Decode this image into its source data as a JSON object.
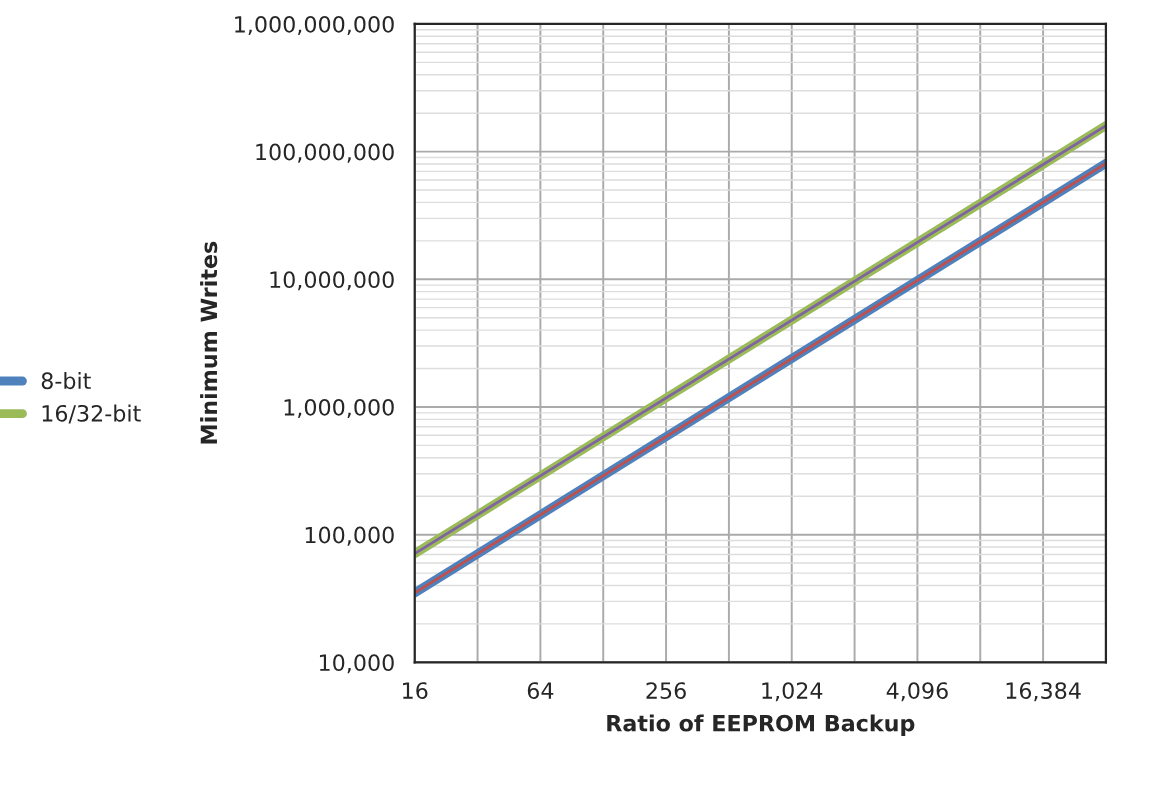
{
  "chart_data": {
    "type": "line",
    "xlabel": "Ratio of EEPROM Backup",
    "ylabel": "Minimum Writes",
    "x": [
      16,
      32768
    ],
    "log": "xy",
    "grid": true,
    "legend": "left",
    "marker": "none",
    "line_style": "solid",
    "xlim": [
      16,
      32768
    ],
    "xticks": [
      16,
      {
        "value": 32,
        "label": null
      },
      64,
      {
        "value": 128,
        "label": null
      },
      256,
      {
        "value": 512,
        "label": null
      },
      {
        "value": 1024,
        "label": "1,024"
      },
      {
        "value": 2048,
        "label": null
      },
      {
        "value": 4096,
        "label": "4,096"
      },
      {
        "value": 8192,
        "label": null
      },
      {
        "value": 16384,
        "label": "16,384"
      },
      {
        "value": 32768,
        "label": null
      }
    ],
    "ylim": [
      10000,
      1000000000
    ],
    "yticks": [
      {
        "value": 10000,
        "label": "10,000"
      },
      {
        "value": 100000,
        "label": "100,000"
      },
      {
        "value": 1000000,
        "label": "1,000,000"
      },
      {
        "value": 10000000,
        "label": "10,000,000"
      },
      {
        "value": 100000000,
        "label": "100,000,000"
      },
      {
        "value": 1000000000,
        "label": "1,000,000,000"
      }
    ],
    "series": [
      {
        "name": "8-bit",
        "color": "#4f81bd",
        "values": [
          35000,
          81000000
        ]
      },
      {
        "name": "16/32-bit",
        "color": "#9bbb59",
        "values": [
          71000,
          160000000
        ]
      },
      {
        "color": "#c0504d",
        "values": [
          35000,
          81000000
        ]
      },
      {
        "color": "#8064a2",
        "values": [
          71000,
          160000000
        ]
      }
    ]
  }
}
